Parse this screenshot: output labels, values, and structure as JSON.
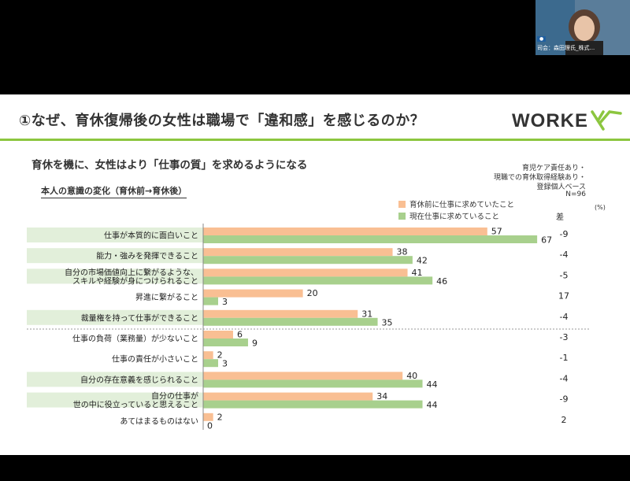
{
  "slide": {
    "title": "①なぜ、育休復帰後の女性は職場で「違和感」を感じるのか？",
    "logo": "WORKEX",
    "subtitle": "育休を機に、女性はより「仕事の質」を求めるようになる",
    "section": "本人の意識の変化（育休前→育休後）",
    "notes": [
      "育児ケア責任あり・",
      "現職での育休取得経験あり・",
      "登録個人ベース",
      "N=96"
    ],
    "unit": "(%)",
    "diff_header": "差"
  },
  "video": {
    "caption": "司会：森田理氏_株式..."
  },
  "colors": {
    "before": "#f9bf93",
    "after": "#a8d08d",
    "label_bg": "#e2efda",
    "accent": "#8cc63f"
  },
  "chart_data": {
    "type": "bar",
    "orientation": "horizontal",
    "categories": [
      [
        "仕事が本質的に面白いこと"
      ],
      [
        "能力・強みを発揮できること"
      ],
      [
        "自分の市場価値向上に繋がるような、",
        "スキルや経験が身につけられること"
      ],
      [
        "昇進に繋がること"
      ],
      [
        "裁量権を持って仕事ができること"
      ],
      [
        "仕事の負荷（業務量）が少ないこと"
      ],
      [
        "仕事の責任が小さいこと"
      ],
      [
        "自分の存在意義を感じられること"
      ],
      [
        "自分の仕事が",
        "世の中に役立っていると思えること"
      ],
      [
        "あてはまるものはない"
      ]
    ],
    "highlighted": [
      true,
      true,
      true,
      false,
      true,
      false,
      false,
      true,
      true,
      false
    ],
    "separator_after_index": 4,
    "series": [
      {
        "name": "育休前に仕事に求めていたこと",
        "values": [
          57,
          38,
          41,
          20,
          31,
          6,
          2,
          40,
          34,
          2
        ]
      },
      {
        "name": "現在仕事に求めていること",
        "values": [
          67,
          42,
          46,
          3,
          35,
          9,
          3,
          44,
          44,
          0
        ]
      }
    ],
    "diff": [
      "-9",
      "-4",
      "-5",
      "17",
      "-4",
      "-3",
      "-1",
      "-4",
      "-9",
      "2"
    ],
    "diff_label": "差",
    "unit": "(%)",
    "xlim": [
      0,
      100
    ]
  }
}
